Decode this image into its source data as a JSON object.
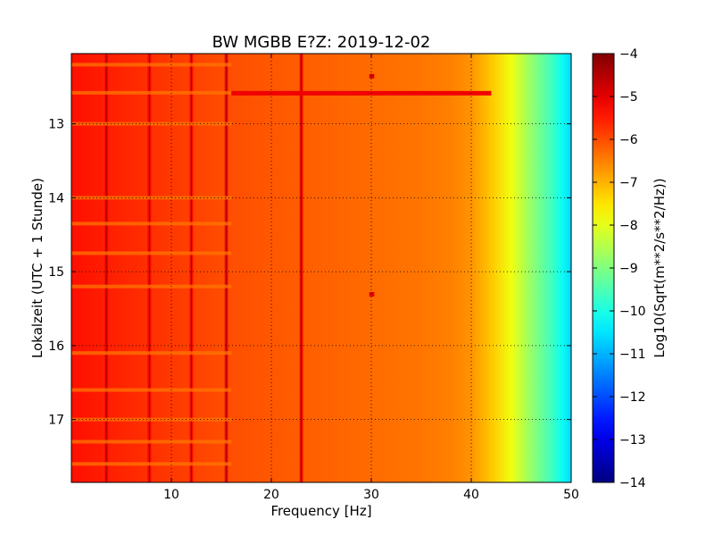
{
  "chart_data": {
    "type": "heatmap",
    "title": "BW MGBB E?Z: 2019-12-02",
    "xlabel": "Frequency [Hz]",
    "ylabel": "Lokalzeit (UTC + 1 Stunde)",
    "xlim": [
      0,
      50
    ],
    "ylim": [
      12.05,
      17.85
    ],
    "y_inverted": true,
    "x_ticks": [
      10,
      20,
      30,
      40,
      50
    ],
    "x_tick_labels": [
      "10",
      "20",
      "30",
      "40",
      "50"
    ],
    "y_ticks": [
      13,
      14,
      15,
      16,
      17
    ],
    "y_tick_labels": [
      "13",
      "14",
      "15",
      "16",
      "17"
    ],
    "grid": true,
    "grid_style": "dotted",
    "colormap": "jet",
    "colorbar": {
      "label": "Log10(Sqrt(m**2/s**2/Hz))",
      "min": -14,
      "max": -4,
      "ticks": [
        -4,
        -5,
        -6,
        -7,
        -8,
        -9,
        -10,
        -11,
        -12,
        -13,
        -14
      ],
      "tick_labels": [
        "−4",
        "−5",
        "−6",
        "−7",
        "−8",
        "−9",
        "−10",
        "−11",
        "−12",
        "−13",
        "−14"
      ]
    },
    "level_profile_vs_frequency": {
      "frequency_hz": [
        0,
        5,
        10,
        15,
        20,
        25,
        30,
        35,
        38,
        40,
        42,
        44,
        46,
        48,
        49,
        50
      ],
      "level": [
        -5.4,
        -5.6,
        -5.8,
        -6.0,
        -6.1,
        -6.2,
        -6.3,
        -6.4,
        -6.5,
        -6.7,
        -7.2,
        -7.9,
        -8.8,
        -9.6,
        -10.1,
        -10.6
      ]
    },
    "vertical_lines_hz": [
      3.5,
      7.8,
      12.0,
      15.5,
      23.0
    ],
    "horizontal_bands_hours": [
      12.2,
      12.58,
      13.0,
      14.0,
      14.35,
      14.75,
      15.2,
      16.1,
      16.6,
      17.0,
      17.3,
      17.6
    ],
    "features": [
      {
        "freq_range_hz": [
          16,
          42
        ],
        "time_hours": 12.58,
        "level": -5.1
      },
      {
        "freq_range_hz": [
          29.8,
          30.3
        ],
        "time_hours": 12.35,
        "level": -4.9
      },
      {
        "freq_range_hz": [
          29.8,
          30.3
        ],
        "time_hours": 15.3,
        "level": -5.0
      }
    ]
  }
}
